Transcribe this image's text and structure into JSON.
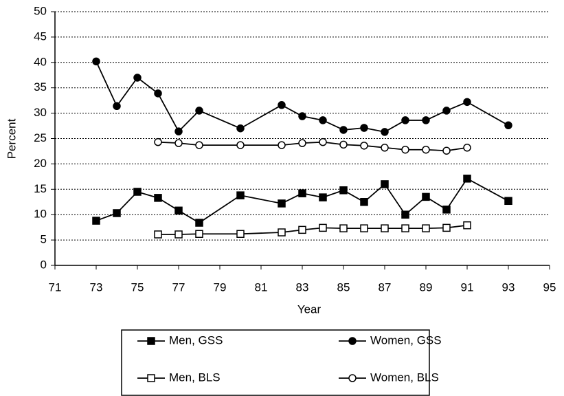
{
  "chart_data": {
    "type": "line",
    "x_label": "Year",
    "y_label": "Percent",
    "xlim": [
      71,
      95
    ],
    "xticks": [
      71,
      73,
      75,
      77,
      79,
      81,
      83,
      85,
      87,
      89,
      91,
      93,
      95
    ],
    "ylim": [
      0,
      50
    ],
    "yticks": [
      0,
      5,
      10,
      15,
      20,
      25,
      30,
      35,
      40,
      45,
      50
    ],
    "grid": true,
    "legend": "bottom",
    "series": [
      {
        "name": "Men, GSS",
        "color": "#000000",
        "marker": "filled-square",
        "x": [
          73,
          74,
          75,
          76,
          77,
          78,
          80,
          82,
          83,
          84,
          85,
          86,
          87,
          88,
          89,
          90,
          91,
          93
        ],
        "values": [
          8.8,
          10.3,
          14.5,
          13.3,
          10.8,
          8.4,
          13.8,
          12.2,
          14.2,
          13.4,
          14.8,
          12.5,
          16,
          10,
          13.5,
          11,
          17.1,
          12.7
        ]
      },
      {
        "name": "Women, GSS",
        "color": "#000000",
        "marker": "filled-circle",
        "x": [
          73,
          74,
          75,
          76,
          77,
          78,
          80,
          82,
          83,
          84,
          85,
          86,
          87,
          88,
          89,
          90,
          91,
          93
        ],
        "values": [
          40.2,
          31.4,
          37,
          33.9,
          26.4,
          30.5,
          27,
          31.6,
          29.4,
          28.6,
          26.7,
          27.1,
          26.3,
          28.6,
          28.6,
          30.5,
          32.2,
          27.6
        ]
      },
      {
        "name": "Men, BLS",
        "color": "#000000",
        "marker": "open-square",
        "x": [
          76,
          77,
          78,
          80,
          82,
          83,
          84,
          85,
          86,
          87,
          88,
          89,
          90,
          91
        ],
        "values": [
          6.1,
          6.1,
          6.2,
          6.2,
          6.5,
          7,
          7.4,
          7.3,
          7.3,
          7.3,
          7.3,
          7.3,
          7.4,
          7.9
        ]
      },
      {
        "name": "Women, BLS",
        "color": "#000000",
        "marker": "open-circle",
        "x": [
          76,
          77,
          78,
          80,
          82,
          83,
          84,
          85,
          86,
          87,
          88,
          89,
          90,
          91
        ],
        "values": [
          24.3,
          24.1,
          23.7,
          23.7,
          23.7,
          24.1,
          24.3,
          23.8,
          23.6,
          23.2,
          22.8,
          22.8,
          22.6,
          23.2
        ]
      }
    ]
  }
}
